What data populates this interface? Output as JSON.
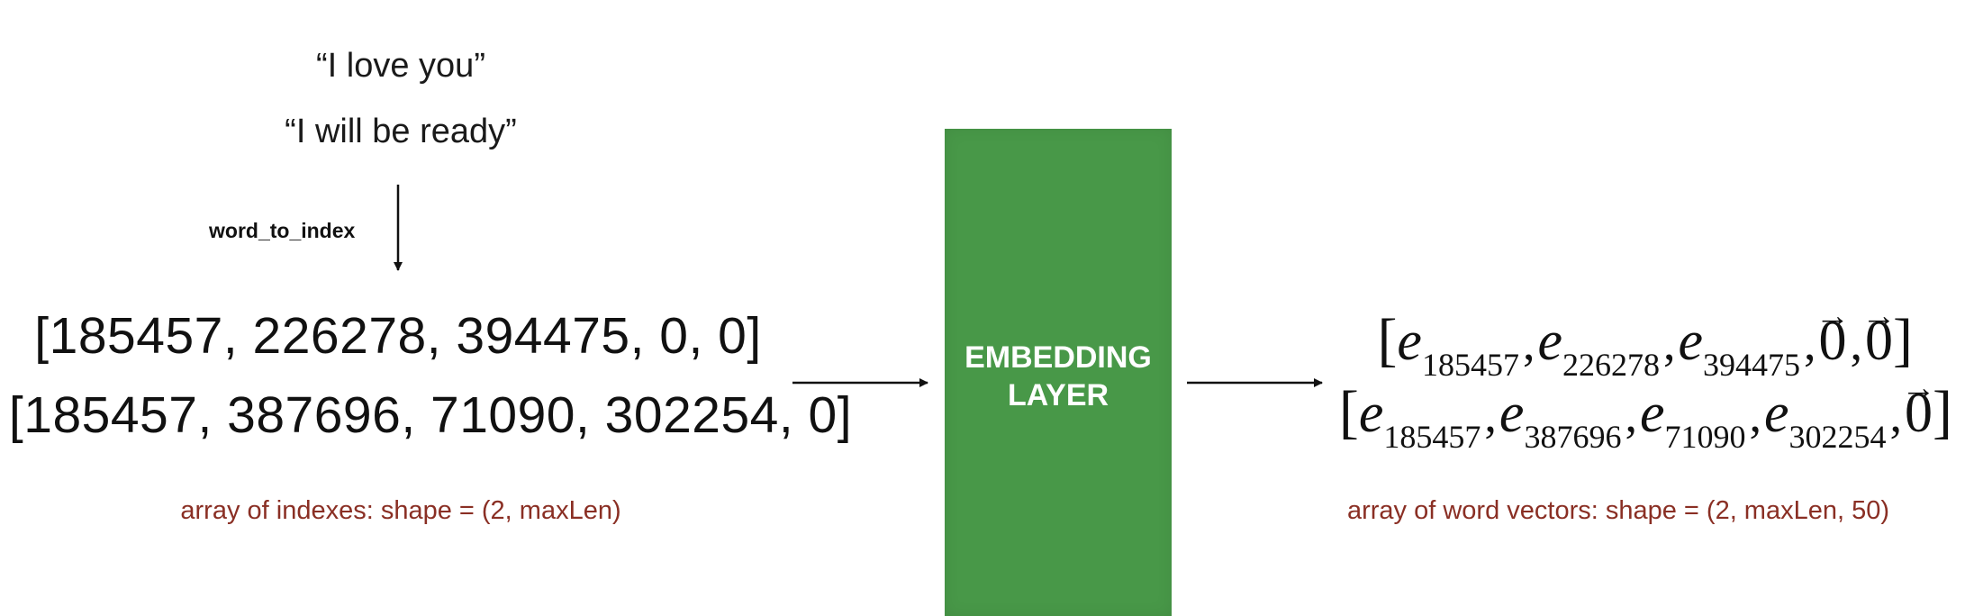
{
  "sentences": [
    "“I love you”",
    "“I will be ready”"
  ],
  "function_label": "word_to_index",
  "index_arrays": [
    "[185457, 226278, 394475, 0, 0]",
    "[185457, 387696, 71090, 302254, 0]"
  ],
  "index_caption": "array of indexes: shape = (2, maxLen)",
  "layer": {
    "line1": "EMBEDDING",
    "line2": "LAYER",
    "color": "#489848"
  },
  "vector_rows": [
    {
      "open": "[",
      "terms": [
        {
          "kind": "e",
          "sym": "e",
          "sub": "185457"
        },
        {
          "kind": "e",
          "sym": "e",
          "sub": "226278"
        },
        {
          "kind": "e",
          "sym": "e",
          "sub": "394475"
        },
        {
          "kind": "zero",
          "sym": "0"
        },
        {
          "kind": "zero",
          "sym": "0"
        }
      ],
      "close": "]"
    },
    {
      "open": "[",
      "terms": [
        {
          "kind": "e",
          "sym": "e",
          "sub": "185457"
        },
        {
          "kind": "e",
          "sym": "e",
          "sub": "387696"
        },
        {
          "kind": "e",
          "sym": "e",
          "sub": "71090"
        },
        {
          "kind": "e",
          "sym": "e",
          "sub": "302254"
        },
        {
          "kind": "zero",
          "sym": "0"
        }
      ],
      "close": "]"
    }
  ],
  "vector_caption": "array of word vectors: shape = (2, maxLen, 50)",
  "caption_color": "#8a2f24"
}
